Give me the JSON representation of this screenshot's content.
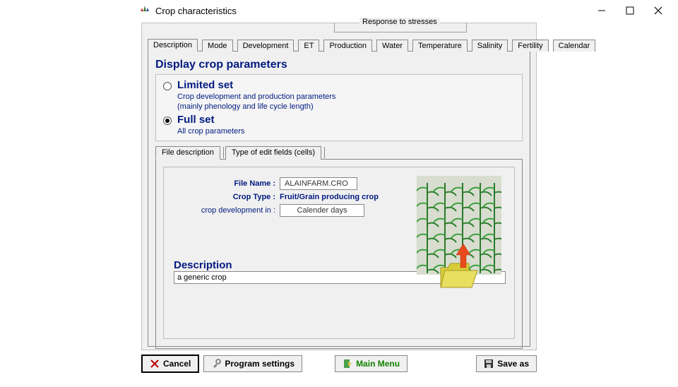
{
  "window": {
    "title": "Crop characteristics"
  },
  "tabs": {
    "stress_group_label": "Response to stresses",
    "items": [
      "Description",
      "Mode",
      "Development",
      "ET",
      "Production",
      "Water",
      "Temperature",
      "Salinity",
      "Fertility",
      "Calendar"
    ],
    "active_index": 0
  },
  "heading": "Display crop parameters",
  "options": {
    "limited": {
      "label": "Limited set",
      "desc1": "Crop development and production parameters",
      "desc2": "(mainly phenology and life cycle length)"
    },
    "full": {
      "label": "Full set",
      "desc": "All crop parameters"
    },
    "selected": "full"
  },
  "subtabs": {
    "items": [
      "File description",
      "Type of edit fields (cells)"
    ],
    "active_index": 0
  },
  "file": {
    "filename_label": "File Name :",
    "filename_value": "ALAINFARM.CRO",
    "croptype_label": "Crop Type :",
    "croptype_value": "Fruit/Grain producing crop",
    "devmode_label": "crop development in :",
    "devmode_value": "Calender days",
    "description_label": "Description",
    "description_value": "a generic crop"
  },
  "buttons": {
    "cancel": "Cancel",
    "settings": "Program settings",
    "main": "Main Menu",
    "save": "Save as"
  },
  "colors": {
    "accent": "#001a80",
    "main_green": "#138000",
    "plant_stem": "#2a7a2a",
    "leaf1": "#3aa03a",
    "leaf2": "#2c7d2c",
    "folder_body": "#d8cc3a",
    "folder_edge": "#a89a1e",
    "arrow": "#e84a1c"
  }
}
